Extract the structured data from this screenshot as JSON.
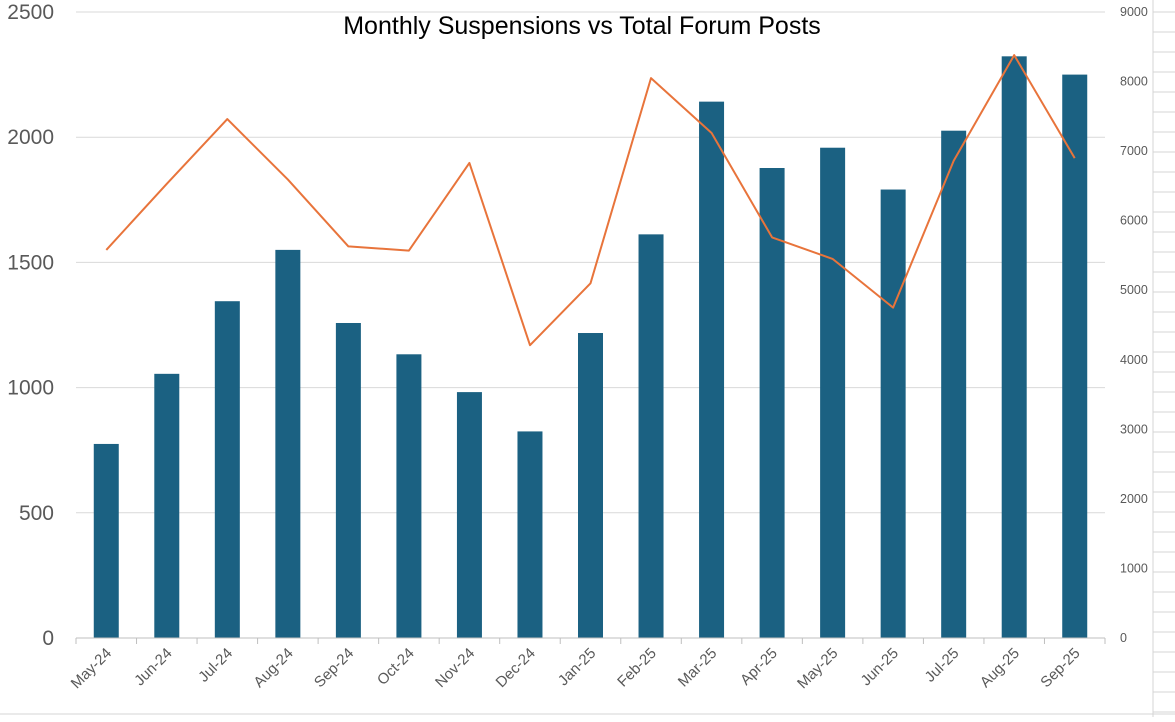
{
  "chart_data": {
    "type": "bar",
    "title": "Monthly Suspensions vs Total Forum Posts",
    "categories": [
      "May-24",
      "Jun-24",
      "Jul-24",
      "Aug-24",
      "Sep-24",
      "Oct-24",
      "Nov-24",
      "Dec-24",
      "Jan-25",
      "Feb-25",
      "Mar-25",
      "Apr-25",
      "May-25",
      "Jun-25",
      "Jul-25",
      "Aug-25",
      "Sep-25"
    ],
    "series": [
      {
        "type": "bar",
        "axis": "left",
        "color": "#1b6182",
        "values": [
          775,
          1055,
          1345,
          1550,
          1258,
          1133,
          982,
          825,
          1218,
          1612,
          2142,
          1877,
          1958,
          1791,
          2026,
          2323,
          2250
        ]
      },
      {
        "type": "line",
        "axis": "right",
        "color": "#e8743b",
        "values": [
          5580,
          6530,
          7460,
          6590,
          5630,
          5570,
          6830,
          4210,
          5100,
          8050,
          7260,
          5760,
          5450,
          4750,
          6860,
          8380,
          6900
        ]
      }
    ],
    "ylim": [
      0,
      2500
    ],
    "yticks": [
      "0",
      "500",
      "1000",
      "1500",
      "2000",
      "2500"
    ],
    "y2lim": [
      0,
      9000
    ],
    "y2ticks": [
      "0",
      "1000",
      "2000",
      "3000",
      "4000",
      "5000",
      "6000",
      "7000",
      "8000",
      "9000"
    ],
    "grid": true,
    "legend": "none"
  }
}
